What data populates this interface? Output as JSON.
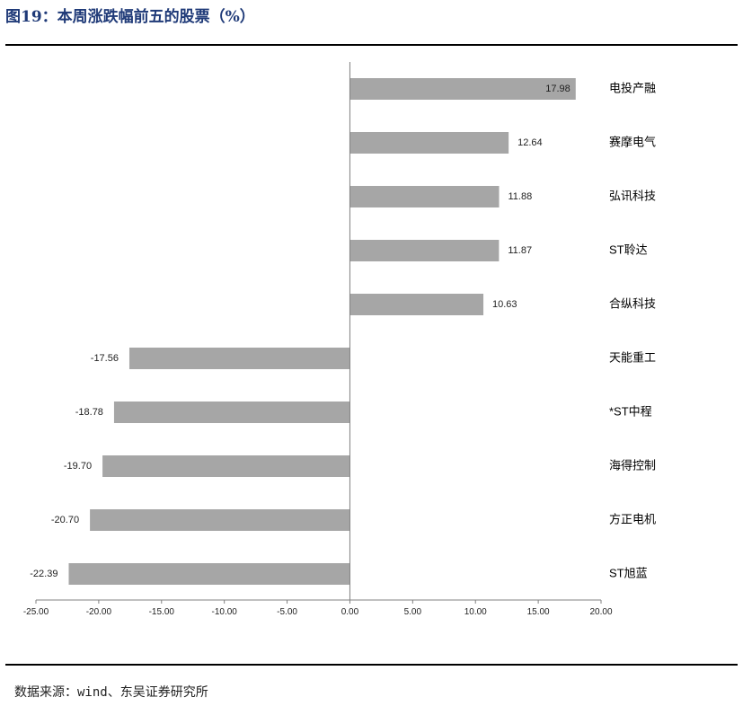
{
  "header": {
    "title": "图19：本周涨跌幅前五的股票（%）"
  },
  "footer": {
    "source": "数据来源：wind、东吴证券研究所"
  },
  "colors": {
    "bar": "#a6a6a6",
    "axis": "#808080",
    "title": "#1f3a78",
    "text": "#222222"
  },
  "chart_data": {
    "type": "bar",
    "orientation": "horizontal",
    "categories": [
      "电投产融",
      "赛摩电气",
      "弘讯科技",
      "ST聆达",
      "合纵科技",
      "天能重工",
      "*ST中程",
      "海得控制",
      "方正电机",
      "ST旭蓝"
    ],
    "values": [
      17.98,
      12.64,
      11.88,
      11.87,
      10.63,
      -17.56,
      -18.78,
      -19.7,
      -20.7,
      -22.39
    ],
    "value_labels": [
      "17.98",
      "12.64",
      "11.88",
      "11.87",
      "10.63",
      "-17.56",
      "-18.78",
      "-19.70",
      "-20.70",
      "-22.39"
    ],
    "xlim": [
      -25,
      20
    ],
    "xticks": [
      -25,
      -20,
      -15,
      -10,
      -5,
      0,
      5,
      10,
      15,
      20
    ],
    "xtick_labels": [
      "-25.00",
      "-20.00",
      "-15.00",
      "-10.00",
      "-5.00",
      "0.00",
      "5.00",
      "10.00",
      "15.00",
      "20.00"
    ],
    "grid": false,
    "legend": "none"
  }
}
